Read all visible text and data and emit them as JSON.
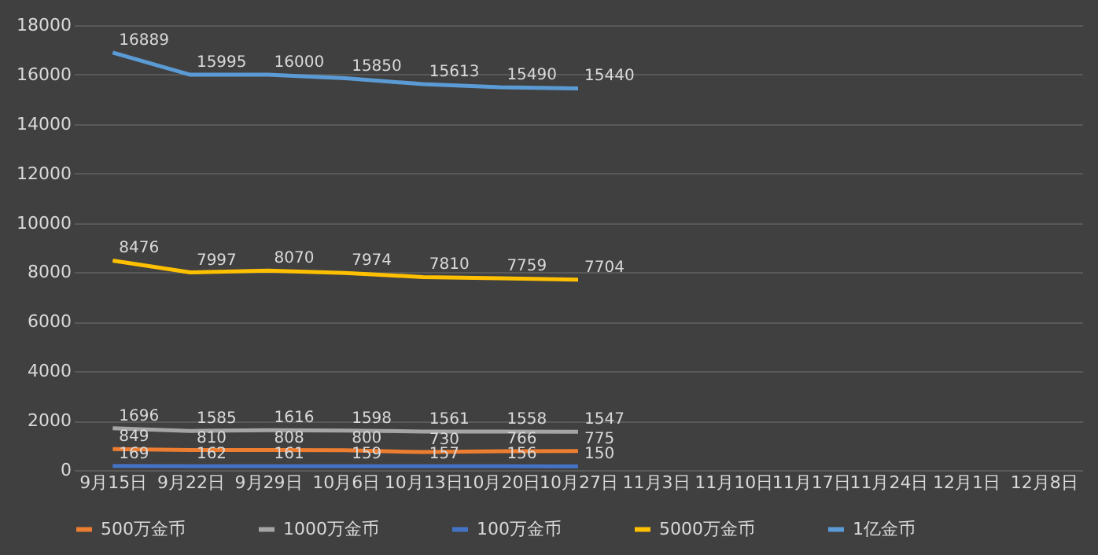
{
  "chart_data": {
    "type": "line",
    "categories": [
      "9月15日",
      "9月22日",
      "9月29日",
      "10月6日",
      "10月13日",
      "10月20日",
      "10月27日",
      "11月3日",
      "11月10日",
      "11月17日",
      "11月24日",
      "12月1日",
      "12月8日"
    ],
    "series": [
      {
        "name": "500万金币",
        "color": "#ed7d31",
        "values": [
          849,
          810,
          808,
          800,
          730,
          766,
          775,
          null,
          null,
          null,
          null,
          null,
          null
        ]
      },
      {
        "name": "1000万金币",
        "color": "#a5a5a5",
        "values": [
          1696,
          1585,
          1616,
          1598,
          1561,
          1558,
          1547,
          null,
          null,
          null,
          null,
          null,
          null
        ]
      },
      {
        "name": "100万金币",
        "color": "#4472c4",
        "values": [
          169,
          162,
          161,
          159,
          157,
          156,
          150,
          null,
          null,
          null,
          null,
          null,
          null
        ]
      },
      {
        "name": "5000万金币",
        "color": "#ffc000",
        "values": [
          8476,
          7997,
          8070,
          7974,
          7810,
          7759,
          7704,
          null,
          null,
          null,
          null,
          null,
          null
        ]
      },
      {
        "name": "1亿金币",
        "color": "#5b9bd5",
        "values": [
          16889,
          15995,
          16000,
          15850,
          15613,
          15490,
          15440,
          null,
          null,
          null,
          null,
          null,
          null
        ]
      }
    ],
    "ylim": [
      0,
      18000
    ],
    "yticks": [
      0,
      2000,
      4000,
      6000,
      8000,
      10000,
      12000,
      14000,
      16000,
      18000
    ],
    "grid": "y",
    "legend": "bottom",
    "data_labels": true,
    "marker": "none",
    "line_style": "solid"
  }
}
